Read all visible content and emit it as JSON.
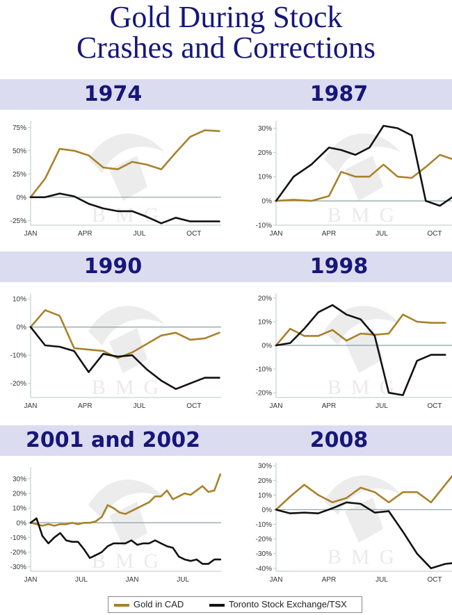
{
  "title_line1": "Gold During Stock",
  "title_line2": "Crashes and Corrections",
  "colors": {
    "gold": "#a9812a",
    "tsx": "#111111",
    "band": "#dcdcf0",
    "title": "#16167a",
    "zero": "#8aa0a0"
  },
  "legend": {
    "gold_label": "Gold in CAD",
    "tsx_label": "Toronto Stock Exchange/TSX"
  },
  "watermark": "BMG",
  "chart_data": [
    {
      "type": "line",
      "title": "1974",
      "ylim": [
        -30,
        82
      ],
      "yticks": [
        -25,
        0,
        25,
        50,
        75
      ],
      "ytick_labels": [
        "-25%",
        "0%",
        "25%",
        "50%",
        "75%"
      ],
      "xlim": [
        0,
        10.5
      ],
      "xticks": [
        0,
        3,
        6,
        9
      ],
      "xtick_labels": [
        "JAN",
        "APR",
        "JUL",
        "OCT"
      ],
      "series": [
        {
          "name": "Gold in CAD",
          "x": [
            0,
            0.8,
            1.6,
            2.4,
            3.2,
            4.0,
            4.8,
            5.6,
            6.4,
            7.2,
            8.0,
            8.8,
            9.6,
            10.4
          ],
          "values": [
            0,
            20,
            52,
            50,
            45,
            32,
            30,
            38,
            35,
            30,
            48,
            65,
            72,
            71
          ]
        },
        {
          "name": "Toronto Stock Exchange/TSX",
          "x": [
            0,
            0.8,
            1.6,
            2.4,
            3.2,
            4.0,
            4.8,
            5.6,
            6.4,
            7.2,
            8.0,
            8.8,
            9.6,
            10.4
          ],
          "values": [
            0,
            0,
            4,
            1,
            -7,
            -12,
            -15,
            -15,
            -21,
            -28,
            -22,
            -26,
            -26,
            -26
          ]
        }
      ]
    },
    {
      "type": "line",
      "title": "1987",
      "ylim": [
        -10,
        33
      ],
      "yticks": [
        -10,
        0,
        10,
        20,
        30
      ],
      "ytick_labels": [
        "-10%",
        "0%",
        "10%",
        "20%",
        "30%"
      ],
      "xlim": [
        0,
        10.5
      ],
      "xticks": [
        0,
        3,
        6,
        9
      ],
      "xtick_labels": [
        "JAN",
        "APR",
        "JUL",
        "OCT"
      ],
      "series": [
        {
          "name": "Gold in CAD",
          "x": [
            0,
            1,
            2,
            3,
            3.7,
            4.5,
            5.3,
            6.1,
            6.9,
            7.7,
            8.5,
            9.3,
            10.1
          ],
          "values": [
            0,
            0.5,
            0,
            2,
            12,
            10,
            10,
            15,
            10,
            9.5,
            14,
            19,
            17
          ]
        },
        {
          "name": "Toronto Stock Exchange/TSX",
          "x": [
            0,
            1,
            2,
            3,
            3.7,
            4.5,
            5.3,
            6.1,
            6.9,
            7.7,
            8.5,
            9.3,
            10.1
          ],
          "values": [
            0,
            10,
            15,
            22,
            21,
            19,
            22,
            31,
            30,
            27,
            0,
            -2,
            2
          ]
        }
      ]
    },
    {
      "type": "line",
      "title": "1990",
      "ylim": [
        -25,
        12
      ],
      "yticks": [
        -20,
        -10,
        0,
        10
      ],
      "ytick_labels": [
        "-20%",
        "-10%",
        "0%",
        "10%"
      ],
      "xlim": [
        0,
        10.5
      ],
      "xticks": [
        0,
        3,
        6,
        9
      ],
      "xtick_labels": [
        "JAN",
        "APR",
        "JUL",
        "OCT"
      ],
      "series": [
        {
          "name": "Gold in CAD",
          "x": [
            0,
            0.8,
            1.6,
            2.4,
            3.2,
            4.0,
            4.8,
            5.6,
            6.4,
            7.2,
            8.0,
            8.8,
            9.6,
            10.4
          ],
          "values": [
            0,
            6,
            4,
            -7.5,
            -8,
            -8.5,
            -11,
            -9,
            -6,
            -3,
            -2,
            -4.5,
            -4,
            -2
          ]
        },
        {
          "name": "Toronto Stock Exchange/TSX",
          "x": [
            0,
            0.8,
            1.6,
            2.4,
            3.2,
            4.0,
            4.8,
            5.6,
            6.4,
            7.2,
            8.0,
            8.8,
            9.6,
            10.4
          ],
          "values": [
            0,
            -6.5,
            -7,
            -8.5,
            -16,
            -9.5,
            -10.5,
            -10,
            -15,
            -19,
            -22,
            -20,
            -18,
            -18
          ]
        }
      ]
    },
    {
      "type": "line",
      "title": "1998",
      "ylim": [
        -22,
        22
      ],
      "yticks": [
        -20,
        -10,
        0,
        10,
        20
      ],
      "ytick_labels": [
        "-20%",
        "-10%",
        "0%",
        "10%",
        "20%"
      ],
      "xlim": [
        0,
        10.5
      ],
      "xticks": [
        0,
        3,
        6,
        9
      ],
      "xtick_labels": [
        "JAN",
        "APR",
        "JUL",
        "OCT"
      ],
      "series": [
        {
          "name": "Gold in CAD",
          "x": [
            0,
            0.8,
            1.6,
            2.4,
            3.2,
            4.0,
            4.8,
            5.6,
            6.4,
            7.2,
            8.0,
            8.8,
            9.6
          ],
          "values": [
            0,
            7,
            4,
            4,
            6.5,
            2,
            5,
            4.5,
            5,
            13,
            10,
            9.5,
            9.5
          ]
        },
        {
          "name": "Toronto Stock Exchange/TSX",
          "x": [
            0,
            0.8,
            1.6,
            2.4,
            3.2,
            4.0,
            4.8,
            5.6,
            6.4,
            7.2,
            8.0,
            8.8,
            9.6
          ],
          "values": [
            0,
            1,
            7,
            14,
            17,
            13,
            11,
            4,
            -20,
            -21,
            -6.5,
            -4,
            -4
          ]
        }
      ]
    },
    {
      "type": "line",
      "title": "2001 and 2002",
      "ylim": [
        -33,
        38
      ],
      "yticks": [
        -30,
        -20,
        -10,
        0,
        10,
        20,
        30
      ],
      "ytick_labels": [
        "-30%",
        "-20%",
        "-10%",
        "0%",
        "10%",
        "20%",
        "30%"
      ],
      "xlim": [
        0,
        22.5
      ],
      "xticks": [
        0,
        6,
        12,
        18
      ],
      "xtick_labels": [
        "JAN",
        "JUL",
        "JAN",
        "JUL"
      ],
      "series": [
        {
          "name": "Gold in CAD",
          "x": [
            0,
            0.7,
            1.4,
            2.1,
            2.8,
            3.5,
            4.2,
            4.9,
            5.6,
            6.3,
            7.0,
            7.7,
            8.4,
            9.1,
            9.8,
            10.5,
            11.2,
            11.9,
            12.6,
            13.3,
            14.0,
            14.7,
            15.4,
            16.1,
            16.8,
            17.5,
            18.2,
            18.9,
            19.6,
            20.3,
            21.0,
            21.7,
            22.4
          ],
          "values": [
            0,
            -1,
            -2,
            -1,
            -2,
            -1,
            -1,
            0,
            -1,
            0,
            0,
            1,
            4,
            12,
            10,
            7,
            6,
            8,
            10,
            12,
            14,
            18,
            18,
            22,
            16,
            18,
            20,
            19,
            22,
            25,
            21,
            22,
            33
          ]
        },
        {
          "name": "Toronto Stock Exchange/TSX",
          "x": [
            0,
            0.7,
            1.4,
            2.1,
            2.8,
            3.5,
            4.2,
            4.9,
            5.6,
            6.3,
            7.0,
            7.7,
            8.4,
            9.1,
            9.8,
            10.5,
            11.2,
            11.9,
            12.6,
            13.3,
            14.0,
            14.7,
            15.4,
            16.1,
            16.8,
            17.5,
            18.2,
            18.9,
            19.6,
            20.3,
            21.0,
            21.7,
            22.4
          ],
          "values": [
            0,
            3,
            -9,
            -14,
            -10,
            -7,
            -12,
            -13,
            -13,
            -18,
            -24,
            -22,
            -20,
            -16,
            -14,
            -14,
            -14,
            -12,
            -15,
            -14,
            -14,
            -12,
            -14,
            -16,
            -17,
            -23,
            -25,
            -26,
            -25,
            -28,
            -28,
            -25,
            -25
          ]
        }
      ]
    },
    {
      "type": "line",
      "title": "2008",
      "ylim": [
        -42,
        32
      ],
      "yticks": [
        -40,
        -30,
        -20,
        -10,
        0,
        10,
        20,
        30
      ],
      "ytick_labels": [
        "-40%",
        "-30%",
        "-20%",
        "-10%",
        "0%",
        "10%",
        "20%",
        "30%"
      ],
      "xlim": [
        0,
        10.5
      ],
      "xticks": [
        0,
        3,
        6,
        9
      ],
      "xtick_labels": [
        "JAN",
        "APR",
        "JUL",
        "OCT"
      ],
      "series": [
        {
          "name": "Gold in CAD",
          "x": [
            0,
            0.8,
            1.6,
            2.4,
            3.2,
            4.0,
            4.8,
            5.6,
            6.4,
            7.2,
            8.0,
            8.8,
            9.6,
            10.4
          ],
          "values": [
            0,
            9,
            17,
            10,
            5,
            8,
            15,
            12,
            5,
            12,
            12,
            5,
            17,
            29
          ]
        },
        {
          "name": "Toronto Stock Exchange/TSX",
          "x": [
            0,
            0.8,
            1.6,
            2.4,
            3.2,
            4.0,
            4.8,
            5.6,
            6.4,
            7.2,
            8.0,
            8.8,
            9.6,
            10.4
          ],
          "values": [
            0,
            -2.5,
            -2,
            -2.5,
            1,
            5,
            4,
            -2,
            -1,
            -15,
            -30,
            -40,
            -37,
            -36
          ]
        }
      ]
    }
  ]
}
